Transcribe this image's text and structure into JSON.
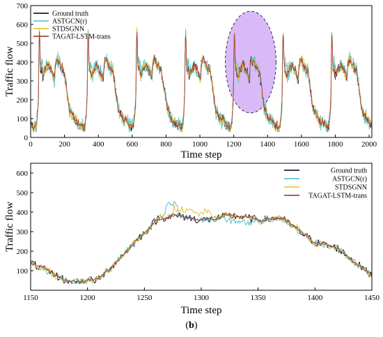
{
  "chart_data": [
    {
      "type": "line",
      "xlabel": "Time step",
      "ylabel": "Traffic flow",
      "xlim": [
        0,
        2016
      ],
      "ylim": [
        0,
        700
      ],
      "xticks": [
        "0",
        "200",
        "400",
        "600",
        "800",
        "1000",
        "1200",
        "1400",
        "1600",
        "1800",
        "2000"
      ],
      "yticks": [
        "0",
        "100",
        "200",
        "300",
        "400",
        "500",
        "600",
        "700"
      ],
      "legend_position": "top-left",
      "highlight": {
        "shape": "ellipse",
        "x_center": 1300,
        "y_center": 400,
        "x_radius": 150,
        "y_radius": 270,
        "fill": "#d9b9f7",
        "stroke": "#3a2a55"
      },
      "series": [
        {
          "name": "Ground truth",
          "color": "#1f1b3d"
        },
        {
          "name": "ASTGCN(r)",
          "color": "#5fc8c4"
        },
        {
          "name": "STDSGNN",
          "color": "#e8c84a"
        },
        {
          "name": "TAGAT-LSTM-trans",
          "color": "#a8463a"
        }
      ]
    },
    {
      "type": "line",
      "xlabel": "Time step",
      "ylabel": "Traffic flow",
      "xlim": [
        1150,
        1450
      ],
      "ylim": [
        0,
        650
      ],
      "xticks": [
        "1150",
        "1200",
        "1250",
        "1300",
        "1350",
        "1400",
        "1450"
      ],
      "yticks": [
        "100",
        "200",
        "300",
        "400",
        "500",
        "600"
      ],
      "legend_position": "top-right",
      "series": [
        {
          "name": "Ground truth",
          "color": "#1f1b3d"
        },
        {
          "name": "ASTGCN(r)",
          "color": "#5fc8c4"
        },
        {
          "name": "STDSGNN",
          "color": "#e8c84a"
        },
        {
          "name": "TAGAT-LSTM-trans",
          "color": "#a8463a"
        }
      ]
    }
  ],
  "caption": {
    "open": "(",
    "letter": "b",
    "close": ")"
  }
}
